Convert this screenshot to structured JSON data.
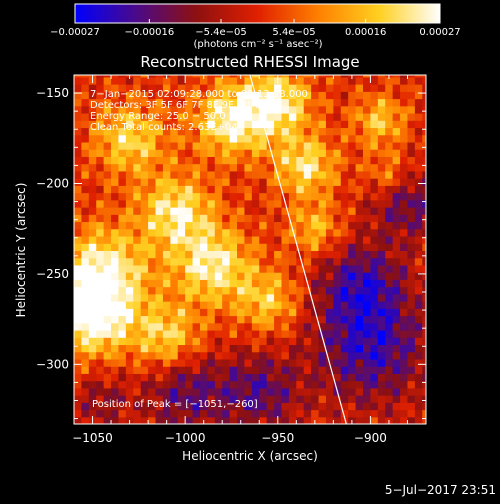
{
  "chart_data": {
    "type": "heatmap",
    "title": "Reconstructed RHESSI Image",
    "xlabel": "Heliocentric X (arcsec)",
    "ylabel": "Heliocentric Y (arcsec)",
    "xlim": [
      -1060,
      -870
    ],
    "ylim": [
      -333,
      -140
    ],
    "x_ticks": [
      -1050,
      -1000,
      -950,
      -900
    ],
    "x_tick_labels": [
      "−1050",
      "−1000",
      "−950",
      "−900"
    ],
    "y_ticks": [
      -150,
      -200,
      -250,
      -300
    ],
    "y_tick_labels": [
      "−150",
      "−200",
      "−250",
      "−300"
    ],
    "colorbar": {
      "min": -0.00027,
      "max": 0.00027,
      "ticks": [
        -0.00027,
        -0.00016,
        -5.4e-05,
        5.4e-05,
        0.00016,
        0.00027
      ],
      "tick_labels": [
        "−0.00027",
        "−0.00016",
        "−5.4e−05",
        "5.4e−05",
        "0.00016",
        "0.00027"
      ],
      "unit_label": "(photons cm⁻² s⁻¹ asec⁻²)",
      "colors": [
        "#0000ff",
        "#4a0a8a",
        "#8e1010",
        "#e02000",
        "#ff8000",
        "#ffd020",
        "#ffffff"
      ]
    },
    "annotations": [
      "7−Jan−2015 02:09:28.000 to 02:13:28.000",
      "Detectors: 3F 5F 6F 7F 8F 9F Att 0",
      "Energy Range: 25.0 − 50.0 keV",
      "Clean    Total counts: 2.63E+04",
      "Position of Peak = [−1051,−260]"
    ],
    "peak_position": [
      -1051,
      -260
    ],
    "limb_line": [
      [
        -965,
        -140
      ],
      [
        -913,
        -333
      ]
    ],
    "bright_regions": [
      {
        "x": -1045,
        "y": -250,
        "intensity": 0.95,
        "r": 18
      },
      {
        "x": -1050,
        "y": -275,
        "intensity": 0.9,
        "r": 14
      },
      {
        "x": -1030,
        "y": -175,
        "intensity": 0.7,
        "r": 14
      },
      {
        "x": -1005,
        "y": -215,
        "intensity": 0.8,
        "r": 14
      },
      {
        "x": -985,
        "y": -245,
        "intensity": 0.85,
        "r": 15
      },
      {
        "x": -975,
        "y": -165,
        "intensity": 0.9,
        "r": 14
      },
      {
        "x": -950,
        "y": -155,
        "intensity": 0.85,
        "r": 13
      },
      {
        "x": -935,
        "y": -190,
        "intensity": 0.75,
        "r": 12
      },
      {
        "x": -1010,
        "y": -285,
        "intensity": 0.7,
        "r": 13
      },
      {
        "x": -955,
        "y": -265,
        "intensity": 0.6,
        "r": 12
      },
      {
        "x": -930,
        "y": -225,
        "intensity": 0.55,
        "r": 10
      },
      {
        "x": -895,
        "y": -165,
        "intensity": 0.6,
        "r": 10
      },
      {
        "x": -890,
        "y": -195,
        "intensity": 0.45,
        "r": 9
      }
    ],
    "dim_regions": [
      {
        "x": -900,
        "y": -290,
        "intensity": -0.7,
        "r": 22
      },
      {
        "x": -905,
        "y": -255,
        "intensity": -0.6,
        "r": 16
      },
      {
        "x": -880,
        "y": -210,
        "intensity": -0.55,
        "r": 14
      },
      {
        "x": -1000,
        "y": -315,
        "intensity": -0.55,
        "r": 16
      },
      {
        "x": -960,
        "y": -315,
        "intensity": -0.55,
        "r": 15
      },
      {
        "x": -1045,
        "y": -320,
        "intensity": -0.35,
        "r": 10
      }
    ]
  },
  "footer": {
    "date_stamp": "5−Jul−2017 23:51"
  }
}
